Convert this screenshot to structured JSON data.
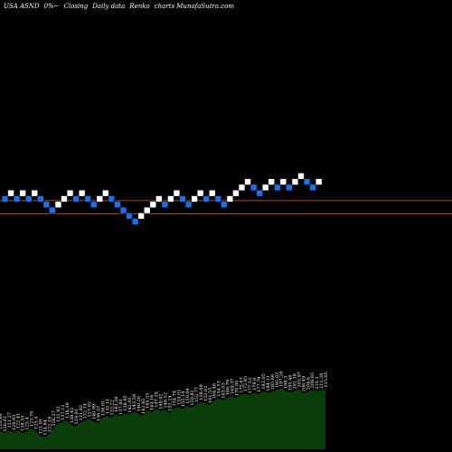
{
  "header": {
    "symbol": "USA ASND",
    "change": "0%",
    "arrow": "←",
    "closing": "Closing",
    "frequency": "Daily data",
    "chart_kind": "Renko",
    "source": "charts MunafaSutra.com"
  },
  "colors": {
    "background": "#000000",
    "up_brick": "#ffffff",
    "down_brick": "#1e6fe6",
    "level_line": "#a0522d",
    "volume_fill": "#0b3d0b"
  },
  "chart_data": [
    {
      "type": "renko",
      "title": "",
      "bricks": [
        {
          "d": "down",
          "level": 5
        },
        {
          "d": "up",
          "level": 6
        },
        {
          "d": "down",
          "level": 5
        },
        {
          "d": "up",
          "level": 6
        },
        {
          "d": "down",
          "level": 5
        },
        {
          "d": "up",
          "level": 6
        },
        {
          "d": "down",
          "level": 5
        },
        {
          "d": "down",
          "level": 4
        },
        {
          "d": "down",
          "level": 3
        },
        {
          "d": "up",
          "level": 4
        },
        {
          "d": "up",
          "level": 5
        },
        {
          "d": "up",
          "level": 6
        },
        {
          "d": "down",
          "level": 5
        },
        {
          "d": "up",
          "level": 6
        },
        {
          "d": "down",
          "level": 5
        },
        {
          "d": "down",
          "level": 4
        },
        {
          "d": "up",
          "level": 5
        },
        {
          "d": "up",
          "level": 6
        },
        {
          "d": "down",
          "level": 5
        },
        {
          "d": "down",
          "level": 4
        },
        {
          "d": "down",
          "level": 3
        },
        {
          "d": "down",
          "level": 2
        },
        {
          "d": "down",
          "level": 1
        },
        {
          "d": "up",
          "level": 2
        },
        {
          "d": "up",
          "level": 3
        },
        {
          "d": "up",
          "level": 4
        },
        {
          "d": "up",
          "level": 5
        },
        {
          "d": "down",
          "level": 4
        },
        {
          "d": "up",
          "level": 5
        },
        {
          "d": "up",
          "level": 6
        },
        {
          "d": "down",
          "level": 5
        },
        {
          "d": "down",
          "level": 4
        },
        {
          "d": "up",
          "level": 5
        },
        {
          "d": "up",
          "level": 6
        },
        {
          "d": "down",
          "level": 5
        },
        {
          "d": "up",
          "level": 6
        },
        {
          "d": "down",
          "level": 5
        },
        {
          "d": "down",
          "level": 4
        },
        {
          "d": "up",
          "level": 5
        },
        {
          "d": "up",
          "level": 6
        },
        {
          "d": "up",
          "level": 7
        },
        {
          "d": "up",
          "level": 8
        },
        {
          "d": "down",
          "level": 7
        },
        {
          "d": "down",
          "level": 6
        },
        {
          "d": "up",
          "level": 7
        },
        {
          "d": "up",
          "level": 8
        },
        {
          "d": "down",
          "level": 7
        },
        {
          "d": "up",
          "level": 8
        },
        {
          "d": "down",
          "level": 7
        },
        {
          "d": "up",
          "level": 8
        },
        {
          "d": "up",
          "level": 9
        },
        {
          "d": "down",
          "level": 8
        },
        {
          "d": "down",
          "level": 7
        },
        {
          "d": "up",
          "level": 8
        }
      ],
      "reference_levels": [
        5.5,
        3.2
      ]
    },
    {
      "type": "area",
      "title": "",
      "labels": [
        "120.69",
        "126.02",
        "121.27",
        "124.93",
        "122.41",
        "128.55",
        "125.4",
        "123.76",
        "125.4",
        "121.91",
        "114.84",
        "122.19",
        "126.27",
        "131.92",
        "137.11",
        "136.39",
        "138.42",
        "129.91",
        "131.93",
        "132.14",
        "127.02",
        "140.99",
        "136.57",
        "136.01",
        "135.11",
        "133.22",
        "143.34",
        "137.92",
        "138.95",
        "142.05",
        "143.58",
        "140.26",
        "142.45",
        "145.55",
        "144.16",
        "147.29",
        "149.02",
        "148.52",
        "152.24",
        "154.74",
        "154.01",
        "155.14",
        "150.04",
        "150.81",
        "152.77",
        "158.09",
        "152.62",
        "161.55",
        "164.46",
        "154.53",
        "163.03",
        "166.79",
        "169.37",
        "170.95",
        "175.67",
        "172.85",
        "177.53",
        "178.6",
        "177.79",
        "182.05",
        "184.11",
        "185.66",
        "195.03",
        "197.26",
        "198.3",
        "195.46",
        "202.38",
        "205.97",
        "206.49",
        "204.6",
        "208.85",
        "210.1",
        "211.26",
        "215.05"
      ],
      "values": [
        30,
        26,
        32,
        28,
        31,
        27,
        29,
        34,
        30,
        22,
        20,
        25,
        35,
        42,
        45,
        48,
        40,
        38,
        44,
        47,
        50,
        46,
        43,
        52,
        55,
        53,
        58,
        54,
        60,
        57,
        62,
        59,
        55,
        64,
        61,
        66,
        63,
        65,
        60,
        68,
        70,
        67,
        72,
        69,
        74,
        78,
        76,
        73,
        80,
        84,
        81,
        86,
        88,
        85,
        90,
        92,
        89,
        94,
        91,
        96,
        93,
        95,
        98,
        100,
        97,
        94,
        96,
        99,
        92,
        95,
        98,
        96,
        97,
        99
      ]
    }
  ]
}
